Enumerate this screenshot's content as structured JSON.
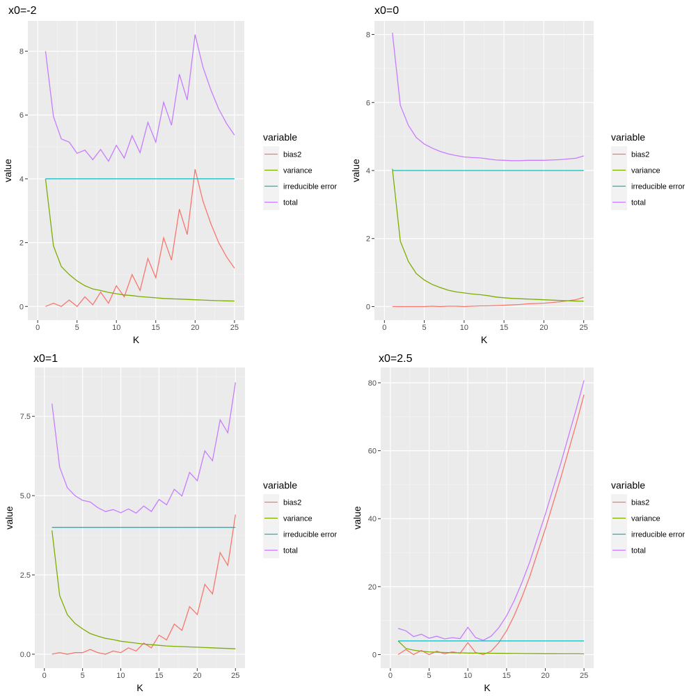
{
  "chart_data": [
    {
      "type": "line",
      "title": "x0=-2",
      "xlabel": "K",
      "ylabel": "value",
      "xlim": [
        0,
        25
      ],
      "ylim": [
        -0.43,
        8.95
      ],
      "xticks": [
        0,
        5,
        10,
        15,
        20,
        25
      ],
      "xtick_labels": [
        "0",
        "5",
        "10",
        "15",
        "20",
        "25"
      ],
      "yticks": [
        0,
        2,
        4,
        6,
        8
      ],
      "ytick_labels": [
        "0",
        "2",
        "4",
        "6",
        "8"
      ],
      "grid": true,
      "legend": {
        "title": "variable",
        "position": "right"
      },
      "x": [
        1,
        2,
        3,
        4,
        5,
        6,
        7,
        8,
        9,
        10,
        11,
        12,
        13,
        14,
        15,
        16,
        17,
        18,
        19,
        20,
        21,
        22,
        23,
        24,
        25
      ],
      "series": [
        {
          "name": "bias2",
          "color": "#F8766D",
          "values": [
            0.0,
            0.1,
            0.0,
            0.2,
            0.0,
            0.3,
            0.05,
            0.45,
            0.1,
            0.65,
            0.3,
            1.0,
            0.5,
            1.5,
            0.9,
            2.15,
            1.45,
            3.05,
            2.25,
            4.3,
            3.3,
            2.6,
            2.0,
            1.55,
            1.2
          ]
        },
        {
          "name": "variance",
          "color": "#7CAE00",
          "values": [
            4.0,
            1.9,
            1.25,
            1.0,
            0.8,
            0.65,
            0.55,
            0.5,
            0.44,
            0.4,
            0.36,
            0.34,
            0.31,
            0.29,
            0.27,
            0.25,
            0.24,
            0.23,
            0.22,
            0.21,
            0.2,
            0.19,
            0.18,
            0.175,
            0.17
          ]
        },
        {
          "name": "irreducible error",
          "color": "#00BFC4",
          "values": [
            4,
            4,
            4,
            4,
            4,
            4,
            4,
            4,
            4,
            4,
            4,
            4,
            4,
            4,
            4,
            4,
            4,
            4,
            4,
            4,
            4,
            4,
            4,
            4,
            4
          ]
        },
        {
          "name": "total",
          "color": "#C77CFF",
          "values": [
            8.0,
            5.95,
            5.25,
            5.15,
            4.8,
            4.9,
            4.6,
            4.92,
            4.55,
            5.05,
            4.65,
            5.35,
            4.82,
            5.77,
            5.15,
            6.4,
            5.68,
            7.28,
            6.47,
            8.52,
            7.5,
            6.79,
            6.19,
            5.73,
            5.37
          ]
        }
      ]
    },
    {
      "type": "line",
      "title": "x0=0",
      "xlabel": "K",
      "ylabel": "value",
      "xlim": [
        0,
        25
      ],
      "ylim": [
        -0.4,
        8.4
      ],
      "xticks": [
        0,
        5,
        10,
        15,
        20,
        25
      ],
      "xtick_labels": [
        "0",
        "5",
        "10",
        "15",
        "20",
        "25"
      ],
      "yticks": [
        0,
        2,
        4,
        6,
        8
      ],
      "ytick_labels": [
        "0",
        "2",
        "4",
        "6",
        "8"
      ],
      "grid": true,
      "legend": {
        "title": "variable",
        "position": "right"
      },
      "x": [
        1,
        2,
        3,
        4,
        5,
        6,
        7,
        8,
        9,
        10,
        11,
        12,
        13,
        14,
        15,
        16,
        17,
        18,
        19,
        20,
        21,
        22,
        23,
        24,
        25
      ],
      "series": [
        {
          "name": "bias2",
          "color": "#F8766D",
          "values": [
            0.0,
            0.0,
            0.0,
            0.0,
            0.0,
            0.01,
            0.0,
            0.01,
            0.01,
            0.0,
            0.01,
            0.02,
            0.02,
            0.03,
            0.04,
            0.05,
            0.06,
            0.08,
            0.09,
            0.1,
            0.12,
            0.14,
            0.17,
            0.2,
            0.27
          ]
        },
        {
          "name": "variance",
          "color": "#7CAE00",
          "values": [
            4.05,
            1.92,
            1.33,
            0.97,
            0.78,
            0.65,
            0.56,
            0.48,
            0.43,
            0.4,
            0.37,
            0.35,
            0.32,
            0.28,
            0.26,
            0.24,
            0.23,
            0.22,
            0.21,
            0.2,
            0.19,
            0.18,
            0.17,
            0.16,
            0.16
          ]
        },
        {
          "name": "irreducible error",
          "color": "#00BFC4",
          "values": [
            4,
            4,
            4,
            4,
            4,
            4,
            4,
            4,
            4,
            4,
            4,
            4,
            4,
            4,
            4,
            4,
            4,
            4,
            4,
            4,
            4,
            4,
            4,
            4,
            4
          ]
        },
        {
          "name": "total",
          "color": "#C77CFF",
          "values": [
            8.05,
            5.92,
            5.33,
            4.97,
            4.78,
            4.66,
            4.56,
            4.49,
            4.44,
            4.4,
            4.38,
            4.37,
            4.34,
            4.31,
            4.3,
            4.29,
            4.29,
            4.3,
            4.3,
            4.3,
            4.31,
            4.32,
            4.34,
            4.36,
            4.43
          ]
        }
      ]
    },
    {
      "type": "line",
      "title": "x0=1",
      "xlabel": "K",
      "ylabel": "value",
      "xlim": [
        0,
        25
      ],
      "ylim": [
        -0.44,
        9.04
      ],
      "xticks": [
        0,
        5,
        10,
        15,
        20,
        25
      ],
      "xtick_labels": [
        "0",
        "5",
        "10",
        "15",
        "20",
        "25"
      ],
      "yticks": [
        0,
        2.5,
        5,
        7.5
      ],
      "ytick_labels": [
        "0.0",
        "2.5",
        "5.0",
        "7.5"
      ],
      "grid": true,
      "legend": {
        "title": "variable",
        "position": "right"
      },
      "x": [
        1,
        2,
        3,
        4,
        5,
        6,
        7,
        8,
        9,
        10,
        11,
        12,
        13,
        14,
        15,
        16,
        17,
        18,
        19,
        20,
        21,
        22,
        23,
        24,
        25
      ],
      "series": [
        {
          "name": "bias2",
          "color": "#F8766D",
          "values": [
            0.0,
            0.05,
            0.0,
            0.05,
            0.05,
            0.15,
            0.05,
            0.0,
            0.1,
            0.05,
            0.2,
            0.1,
            0.35,
            0.2,
            0.6,
            0.45,
            0.95,
            0.75,
            1.5,
            1.25,
            2.2,
            1.9,
            3.2,
            2.8,
            4.4
          ]
        },
        {
          "name": "variance",
          "color": "#7CAE00",
          "values": [
            3.9,
            1.85,
            1.25,
            0.97,
            0.8,
            0.65,
            0.57,
            0.5,
            0.46,
            0.41,
            0.38,
            0.35,
            0.32,
            0.3,
            0.28,
            0.26,
            0.25,
            0.24,
            0.23,
            0.22,
            0.21,
            0.2,
            0.19,
            0.18,
            0.17
          ]
        },
        {
          "name": "irreducible error",
          "color": "#00BFC4",
          "values": [
            4,
            4,
            4,
            4,
            4,
            4,
            4,
            4,
            4,
            4,
            4,
            4,
            4,
            4,
            4,
            4,
            4,
            4,
            4,
            4,
            4,
            4,
            4,
            4,
            4
          ]
        },
        {
          "name": "total",
          "color": "#C77CFF",
          "values": [
            7.9,
            5.9,
            5.25,
            5.0,
            4.85,
            4.8,
            4.62,
            4.5,
            4.56,
            4.46,
            4.58,
            4.45,
            4.67,
            4.5,
            4.88,
            4.71,
            5.2,
            4.99,
            5.73,
            5.47,
            6.41,
            6.1,
            7.39,
            6.98,
            8.57
          ]
        }
      ]
    },
    {
      "type": "line",
      "title": "x0=2.5",
      "xlabel": "K",
      "ylabel": "value",
      "xlim": [
        0,
        25
      ],
      "ylim": [
        -4.0,
        84.5
      ],
      "xticks": [
        0,
        5,
        10,
        15,
        20,
        25
      ],
      "xtick_labels": [
        "0",
        "5",
        "10",
        "15",
        "20",
        "25"
      ],
      "yticks": [
        0,
        20,
        40,
        60,
        80
      ],
      "ytick_labels": [
        "0",
        "20",
        "40",
        "60",
        "80"
      ],
      "grid": true,
      "legend": {
        "title": "variable",
        "position": "right"
      },
      "x": [
        1,
        2,
        3,
        4,
        5,
        6,
        7,
        8,
        9,
        10,
        11,
        12,
        13,
        14,
        15,
        16,
        17,
        18,
        19,
        20,
        21,
        22,
        23,
        24,
        25
      ],
      "series": [
        {
          "name": "bias2",
          "color": "#F8766D",
          "values": [
            0.0,
            1.5,
            0.0,
            1.2,
            0.0,
            1.0,
            0.2,
            0.8,
            0.4,
            3.5,
            0.6,
            0.0,
            1.0,
            3.5,
            7.0,
            11.5,
            17.0,
            23.0,
            30.0,
            37.0,
            44.5,
            52.0,
            60.0,
            68.0,
            76.5
          ]
        },
        {
          "name": "variance",
          "color": "#7CAE00",
          "values": [
            4.0,
            1.8,
            1.3,
            1.0,
            0.8,
            0.7,
            0.6,
            0.55,
            0.5,
            0.45,
            0.42,
            0.4,
            0.38,
            0.36,
            0.34,
            0.32,
            0.3,
            0.28,
            0.26,
            0.25,
            0.24,
            0.23,
            0.22,
            0.21,
            0.2
          ]
        },
        {
          "name": "irreducible error",
          "color": "#00BFC4",
          "values": [
            4,
            4,
            4,
            4,
            4,
            4,
            4,
            4,
            4,
            4,
            4,
            4,
            4,
            4,
            4,
            4,
            4,
            4,
            4,
            4,
            4,
            4,
            4,
            4,
            4
          ]
        },
        {
          "name": "total",
          "color": "#C77CFF",
          "values": [
            7.7,
            7.0,
            5.3,
            6.0,
            4.8,
            5.4,
            4.6,
            5.0,
            4.7,
            8.0,
            5.0,
            4.2,
            5.4,
            7.9,
            11.4,
            15.9,
            21.3,
            27.3,
            34.3,
            41.3,
            48.8,
            56.3,
            64.3,
            72.3,
            80.7
          ]
        }
      ]
    }
  ]
}
